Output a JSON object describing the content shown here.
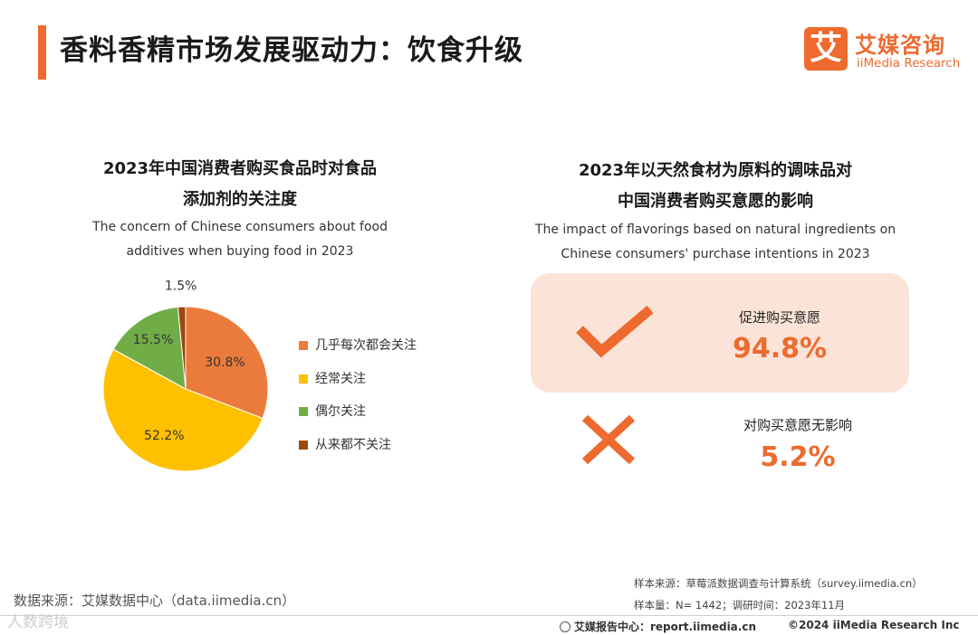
{
  "page": {
    "title": "香料香精市场发展驱动力：饮食升级"
  },
  "logo": {
    "mark": "艾",
    "name_cn": "艾媒咨询",
    "name_en": "iiMedia Research"
  },
  "left_chart": {
    "title_line1": "2023年中国消费者购买食品时对食品",
    "title_line2": "添加剂的关注度",
    "subtitle_line1": "The concern of Chinese consumers about food",
    "subtitle_line2": "additives when buying food in 2023"
  },
  "right_chart": {
    "title_line1": "2023年以天然食材为原料的调味品对",
    "title_line2": "中国消费者购买意愿的影响",
    "subtitle_line1": "The impact of flavorings based on natural ingredients on",
    "subtitle_line2": "Chinese consumers' purchase intentions in 2023",
    "items": [
      {
        "label": "促进购买意愿",
        "value": "94.8%",
        "icon": "check-icon"
      },
      {
        "label": "对购买意愿无影响",
        "value": "5.2%",
        "icon": "cross-icon"
      }
    ]
  },
  "chart_data": [
    {
      "type": "pie",
      "title": "2023年中国消费者购买食品时对食品添加剂的关注度",
      "categories": [
        "几乎每次都会关注",
        "经常关注",
        "偶尔关注",
        "从来都不关注"
      ],
      "values": [
        30.8,
        52.2,
        15.5,
        1.5
      ],
      "labels": [
        "30.8%",
        "52.2%",
        "15.5%",
        "1.5%"
      ],
      "colors": [
        "#EB7B3C",
        "#FFC000",
        "#70AD47",
        "#9E480E"
      ],
      "start_angle_deg": 0,
      "direction": "clockwise",
      "legend_position": "right"
    },
    {
      "type": "table",
      "title": "2023年以天然食材为原料的调味品对中国消费者购买意愿的影响",
      "categories": [
        "促进购买意愿",
        "对购买意愿无影响"
      ],
      "values": [
        94.8,
        5.2
      ]
    }
  ],
  "colors": {
    "accent": "#EE6A2E",
    "panel": "#FBE3D7"
  },
  "footer": {
    "source": "数据来源：艾媒数据中心（data.iimedia.cn）",
    "watermark": "人数跨境",
    "sample_source": "样本来源：草莓派数据调查与计算系统（survey.iimedia.cn）",
    "sample_size": "样本量：N= 1442；调研时间：2023年11月",
    "report": "艾媒报告中心：report.iimedia.cn",
    "copyright": "©2024  iiMedia Research  Inc"
  }
}
